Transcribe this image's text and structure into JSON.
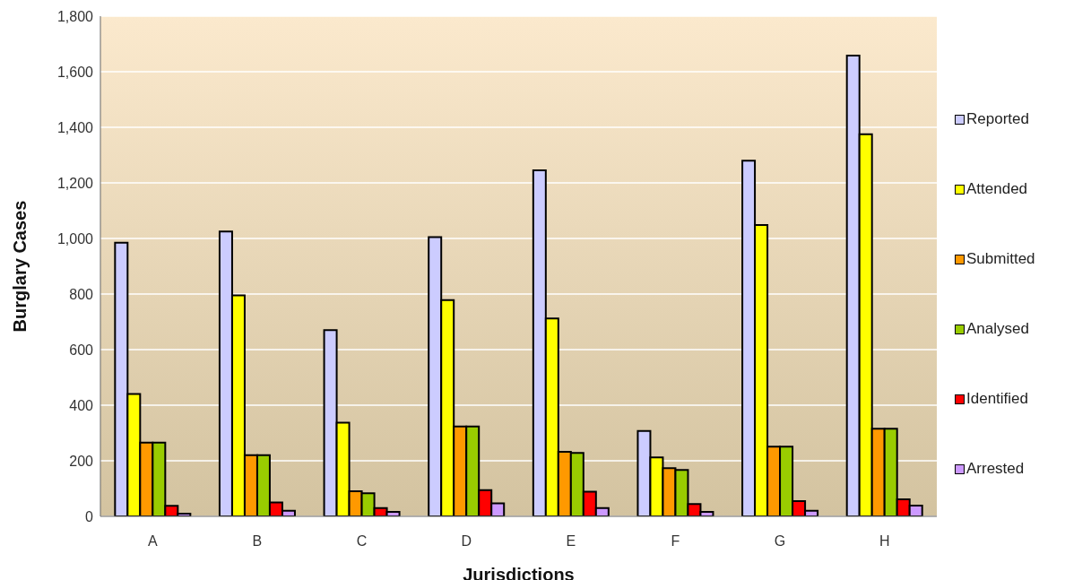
{
  "chart_data": {
    "type": "bar",
    "xlabel": "Jurisdictions",
    "ylabel": "Burglary Cases",
    "categories": [
      "A",
      "B",
      "C",
      "D",
      "E",
      "F",
      "G",
      "H"
    ],
    "series": [
      {
        "name": "Reported",
        "color": "#ccccff",
        "values": [
          985,
          1025,
          670,
          1005,
          1245,
          307,
          1280,
          1658
        ]
      },
      {
        "name": "Attended",
        "color": "#ffff00",
        "values": [
          440,
          795,
          337,
          778,
          712,
          212,
          1048,
          1375
        ]
      },
      {
        "name": "Submitted",
        "color": "#ff9900",
        "values": [
          265,
          220,
          90,
          323,
          232,
          173,
          251,
          315
        ]
      },
      {
        "name": "Analysed",
        "color": "#99cc00",
        "values": [
          265,
          220,
          83,
          323,
          228,
          167,
          251,
          315
        ]
      },
      {
        "name": "Identified",
        "color": "#ff0000",
        "values": [
          38,
          50,
          30,
          94,
          89,
          44,
          55,
          61
        ]
      },
      {
        "name": "Arrested",
        "color": "#cc99ff",
        "values": [
          10,
          20,
          16,
          47,
          30,
          16,
          20,
          39
        ]
      }
    ],
    "ylim": [
      0,
      1800
    ],
    "yticks": [
      {
        "value": 0,
        "label": "0"
      },
      {
        "value": 200,
        "label": "200"
      },
      {
        "value": 400,
        "label": "400"
      },
      {
        "value": 600,
        "label": "600"
      },
      {
        "value": 800,
        "label": "800"
      },
      {
        "value": 1000,
        "label": "1,000"
      },
      {
        "value": 1200,
        "label": "1,200"
      },
      {
        "value": 1400,
        "label": "1,400"
      },
      {
        "value": 1600,
        "label": "1,600"
      },
      {
        "value": 1800,
        "label": "1,800"
      }
    ],
    "grid": "y",
    "legend": "right"
  }
}
